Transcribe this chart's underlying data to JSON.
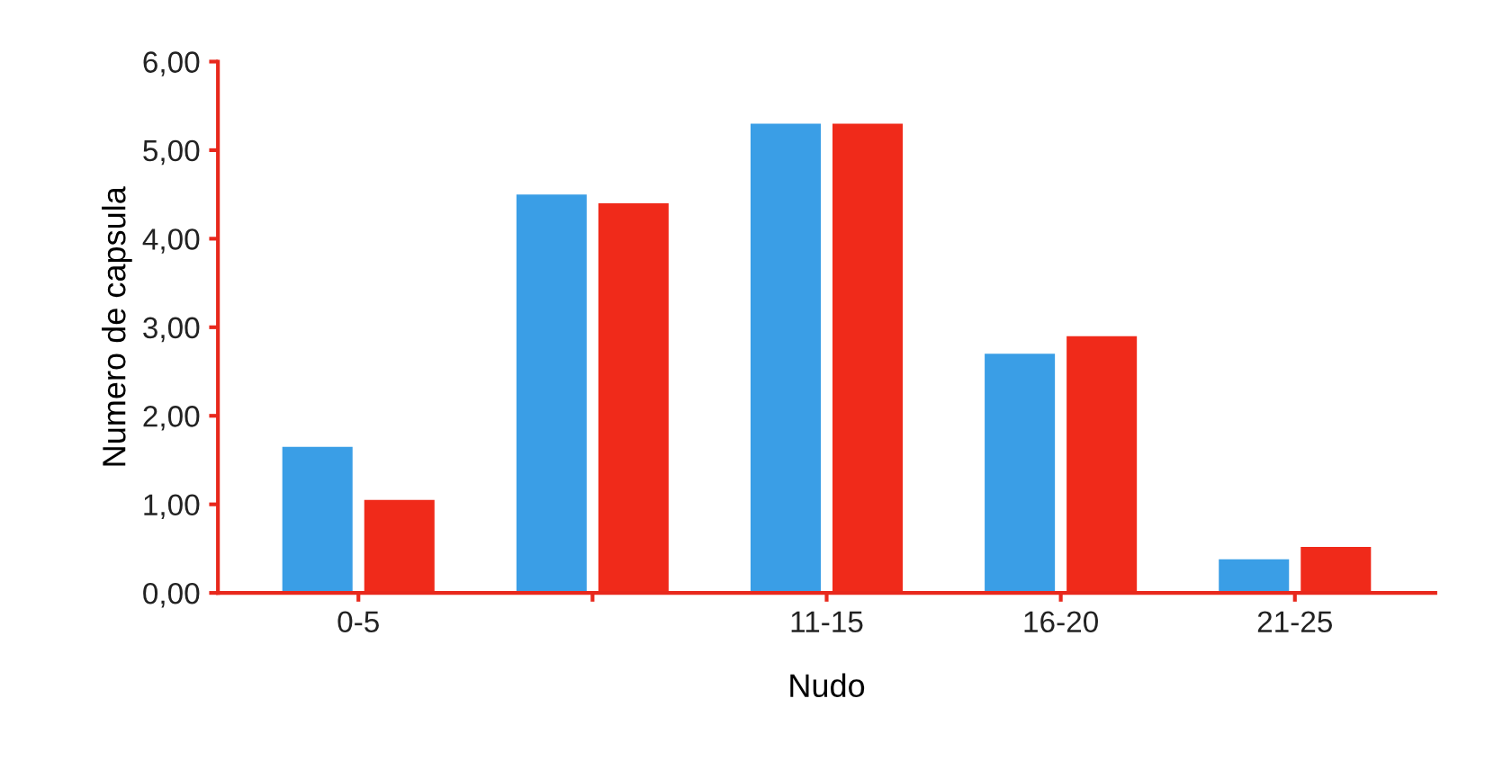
{
  "chart_data": {
    "type": "bar",
    "xlabel": "Nudo",
    "ylabel": "Numero de capsula",
    "categories": [
      "0-5",
      null,
      "11-15",
      "16-20",
      "21-25"
    ],
    "series": [
      {
        "color": "#3a9ee6",
        "values": [
          1.65,
          4.5,
          5.3,
          2.7,
          0.38
        ]
      },
      {
        "color": "#f02a1a",
        "values": [
          1.05,
          4.4,
          5.3,
          2.9,
          0.52
        ]
      }
    ],
    "ylim": [
      0,
      6
    ],
    "yticks": [
      {
        "value": 0,
        "label": "0,00"
      },
      {
        "value": 1,
        "label": "1,00"
      },
      {
        "value": 2,
        "label": "2,00"
      },
      {
        "value": 3,
        "label": "3,00"
      },
      {
        "value": 4,
        "label": "4,00"
      },
      {
        "value": 5,
        "label": "5,00"
      },
      {
        "value": 6,
        "label": "6,00"
      }
    ],
    "grid": false
  }
}
